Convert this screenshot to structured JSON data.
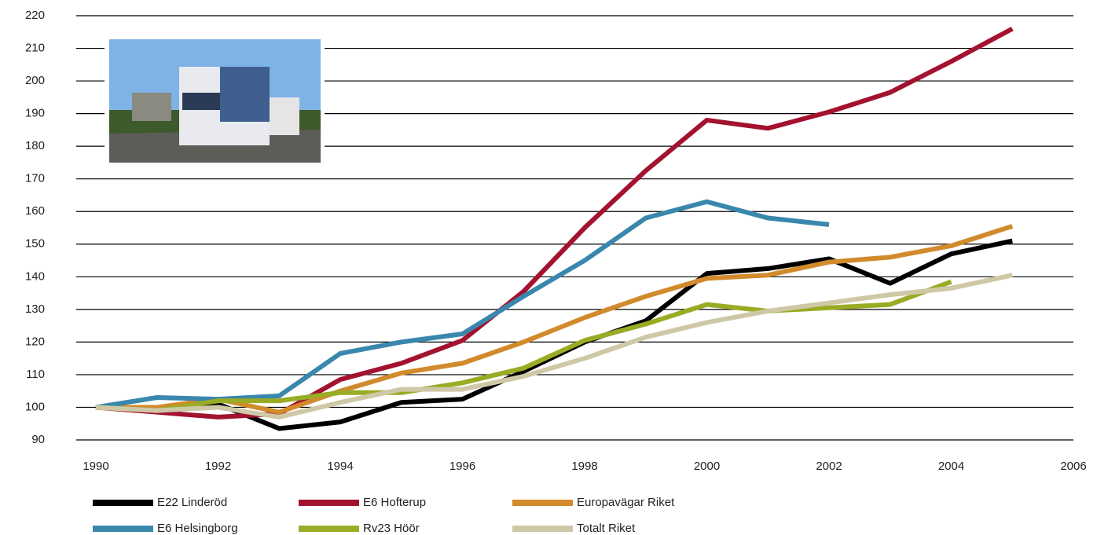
{
  "chart_data": {
    "type": "line",
    "x": [
      1990,
      1991,
      1992,
      1993,
      1994,
      1995,
      1996,
      1997,
      1998,
      1999,
      2000,
      2001,
      2002,
      2003,
      2004,
      2005
    ],
    "series": [
      {
        "name": "E22 Linderöd",
        "color": "#000000",
        "values": [
          100,
          99,
          101,
          93.5,
          95.5,
          101.5,
          102.5,
          111,
          120,
          126.5,
          141,
          142.5,
          145.5,
          138,
          147,
          151
        ]
      },
      {
        "name": "E6 Hofterup",
        "color": "#a3122f",
        "values": [
          100,
          98.5,
          97,
          98,
          108.5,
          113.5,
          120.5,
          135.5,
          155,
          172.5,
          188,
          185.5,
          190.5,
          196.5,
          206,
          216
        ]
      },
      {
        "name": "Europavägar Riket",
        "color": "#d18a2c",
        "values": [
          100,
          100,
          102.5,
          98.5,
          105,
          110.5,
          113.5,
          120,
          127.5,
          134,
          139.5,
          140.5,
          144.5,
          146,
          149.5,
          155.5
        ]
      },
      {
        "name": "E6 Helsingborg",
        "color": "#3a87ad",
        "values": [
          100,
          103,
          102.5,
          103.5,
          116.5,
          120,
          122.5,
          134,
          145,
          158,
          163,
          158,
          156,
          null,
          null,
          null
        ]
      },
      {
        "name": "Rv23 Höör",
        "color": "#9aab25",
        "values": [
          100,
          99,
          102,
          102,
          104.5,
          104.5,
          107.5,
          112,
          120.5,
          125.5,
          131.5,
          129.5,
          130.5,
          131.5,
          138.5,
          null
        ]
      },
      {
        "name": "Totalt Riket",
        "color": "#cfc8a6",
        "values": [
          100,
          99,
          100,
          97,
          101.5,
          105.5,
          105.5,
          109.5,
          115,
          121.5,
          126,
          129.5,
          132,
          134.5,
          136.5,
          140.5
        ]
      }
    ],
    "xlim": [
      1990,
      2006
    ],
    "xticks": [
      1990,
      1992,
      1994,
      1996,
      1998,
      2000,
      2002,
      2004,
      2006
    ],
    "ylim": [
      90,
      220
    ],
    "yticks": [
      90,
      100,
      110,
      120,
      130,
      140,
      150,
      160,
      170,
      180,
      190,
      200,
      210,
      220
    ],
    "grid": true
  }
}
